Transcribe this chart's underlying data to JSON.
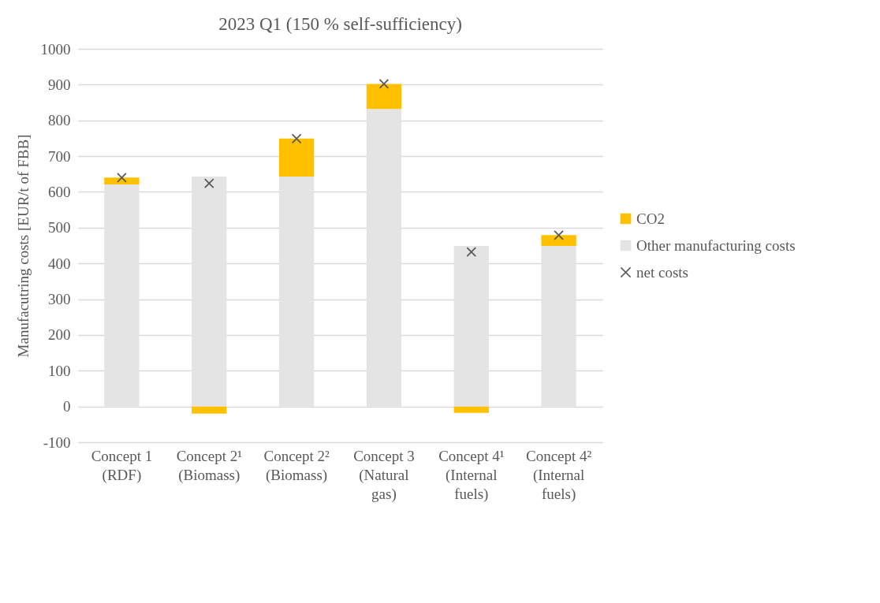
{
  "chart_data": {
    "type": "bar",
    "title": "2023 Q1 (150 % self-sufficiency)",
    "ylabel": "Manufacutring costs [EUR/t of FBB]",
    "categories": [
      "Concept 1 (RDF)",
      "Concept 2¹ (Biomass)",
      "Concept 2² (Biomass)",
      "Concept 3 (Natural gas)",
      "Concept 4¹ (Internal fuels)",
      "Concept 4² (Internal fuels)"
    ],
    "stacked": true,
    "series": [
      {
        "name": "Other manufacturing costs",
        "color": "#e4e4e4",
        "values": [
          621,
          643,
          643,
          832,
          449,
          449
        ]
      },
      {
        "name": "CO2",
        "color": "#ffc000",
        "values": [
          19,
          -20,
          106,
          70,
          -18,
          30
        ]
      },
      {
        "name": "net costs",
        "type": "scatter",
        "color": "#595959",
        "marker": "cross",
        "values": [
          640,
          624,
          749,
          902,
          432,
          479
        ]
      }
    ],
    "ylim": [
      -100,
      1000
    ],
    "yticks": [
      -100,
      0,
      100,
      200,
      300,
      400,
      500,
      600,
      700,
      800,
      900,
      1000
    ],
    "grid": "y",
    "legend": "right"
  }
}
